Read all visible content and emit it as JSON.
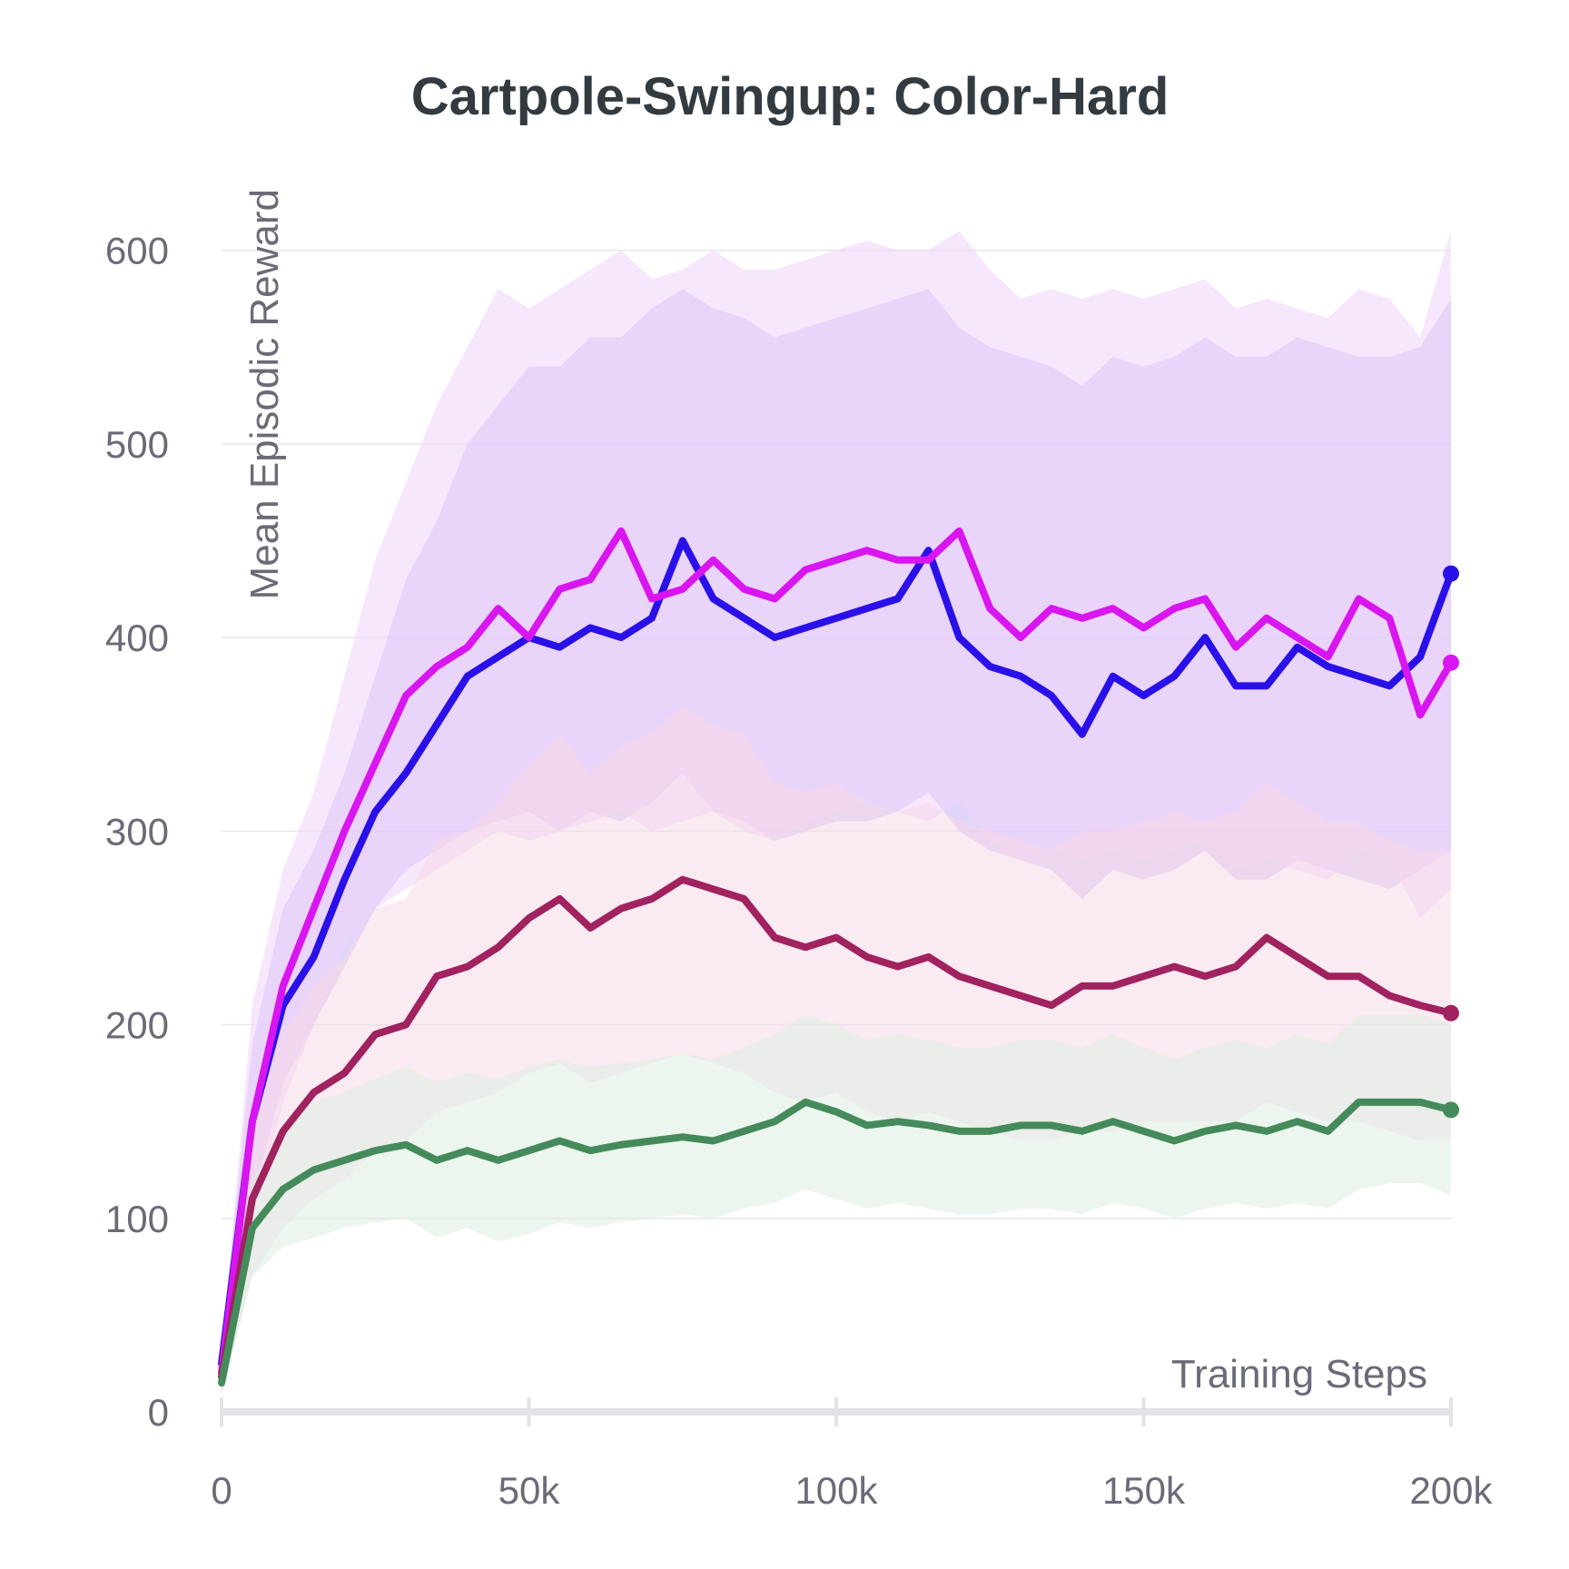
{
  "chart_data": {
    "type": "line",
    "title": "Cartpole-Swingup: Color-Hard",
    "xlabel": "Training Steps",
    "ylabel": "Mean Episodic Reward",
    "xlim": [
      0,
      200000
    ],
    "ylim": [
      0,
      620
    ],
    "x_ticks": [
      {
        "value": 0,
        "label": "0"
      },
      {
        "value": 50000,
        "label": "50k"
      },
      {
        "value": 100000,
        "label": "100k"
      },
      {
        "value": 150000,
        "label": "150k"
      },
      {
        "value": 200000,
        "label": "200k"
      }
    ],
    "y_ticks": [
      {
        "value": 0,
        "label": "0"
      },
      {
        "value": 100,
        "label": "100"
      },
      {
        "value": 200,
        "label": "200"
      },
      {
        "value": 300,
        "label": "300"
      },
      {
        "value": 400,
        "label": "400"
      },
      {
        "value": 500,
        "label": "500"
      },
      {
        "value": 600,
        "label": "600"
      }
    ],
    "grid": true,
    "legend": "none",
    "x": [
      0,
      5000,
      10000,
      15000,
      20000,
      25000,
      30000,
      35000,
      40000,
      45000,
      50000,
      55000,
      60000,
      65000,
      70000,
      75000,
      80000,
      85000,
      90000,
      95000,
      100000,
      105000,
      110000,
      115000,
      120000,
      125000,
      130000,
      135000,
      140000,
      145000,
      150000,
      155000,
      160000,
      165000,
      170000,
      175000,
      180000,
      185000,
      190000,
      195000,
      200000
    ],
    "series": [
      {
        "color": "#2a10e8",
        "band_color": "#c9b3f5",
        "values": [
          25,
          150,
          210,
          235,
          275,
          310,
          330,
          355,
          380,
          390,
          400,
          395,
          405,
          400,
          410,
          450,
          420,
          410,
          400,
          405,
          410,
          415,
          420,
          445,
          400,
          385,
          380,
          370,
          350,
          380,
          370,
          380,
          400,
          375,
          375,
          395,
          385,
          380,
          375,
          390,
          433
        ],
        "band_low": [
          15,
          110,
          170,
          200,
          230,
          260,
          280,
          290,
          300,
          305,
          310,
          300,
          310,
          305,
          315,
          330,
          310,
          305,
          295,
          300,
          305,
          305,
          310,
          320,
          300,
          290,
          285,
          280,
          265,
          280,
          275,
          280,
          290,
          275,
          275,
          285,
          280,
          275,
          270,
          280,
          290
        ],
        "band_high": [
          35,
          190,
          260,
          290,
          330,
          380,
          430,
          460,
          500,
          520,
          540,
          540,
          555,
          555,
          570,
          580,
          570,
          565,
          555,
          560,
          565,
          570,
          575,
          580,
          560,
          550,
          545,
          540,
          530,
          545,
          540,
          545,
          555,
          545,
          545,
          555,
          550,
          545,
          545,
          550,
          575
        ]
      },
      {
        "color": "#d915f0",
        "band_color": "#f1d3fa",
        "values": [
          20,
          150,
          220,
          260,
          300,
          335,
          370,
          385,
          395,
          415,
          400,
          425,
          430,
          455,
          420,
          425,
          440,
          425,
          420,
          435,
          440,
          445,
          440,
          440,
          455,
          415,
          400,
          415,
          410,
          415,
          405,
          415,
          420,
          395,
          410,
          400,
          390,
          420,
          410,
          360,
          387
        ],
        "band_low": [
          10,
          100,
          160,
          200,
          240,
          260,
          270,
          280,
          290,
          300,
          295,
          300,
          305,
          310,
          300,
          305,
          310,
          300,
          295,
          305,
          310,
          315,
          310,
          305,
          315,
          295,
          285,
          290,
          285,
          290,
          285,
          290,
          295,
          280,
          285,
          280,
          275,
          290,
          285,
          255,
          270
        ],
        "band_high": [
          30,
          210,
          280,
          320,
          380,
          440,
          480,
          520,
          550,
          580,
          570,
          580,
          590,
          600,
          585,
          590,
          600,
          590,
          590,
          595,
          600,
          605,
          600,
          600,
          610,
          590,
          575,
          580,
          575,
          580,
          575,
          580,
          585,
          570,
          575,
          570,
          565,
          580,
          575,
          555,
          610
        ]
      },
      {
        "color": "#a0225f",
        "band_color": "#f5d8e6",
        "values": [
          18,
          110,
          145,
          165,
          175,
          195,
          200,
          225,
          230,
          240,
          255,
          265,
          250,
          260,
          265,
          275,
          270,
          265,
          245,
          240,
          245,
          235,
          230,
          235,
          225,
          220,
          215,
          210,
          220,
          220,
          225,
          230,
          225,
          230,
          245,
          235,
          225,
          225,
          215,
          210,
          206
        ],
        "band_low": [
          8,
          70,
          95,
          110,
          120,
          135,
          140,
          155,
          160,
          165,
          175,
          180,
          170,
          175,
          180,
          185,
          180,
          175,
          165,
          160,
          165,
          155,
          150,
          155,
          150,
          145,
          140,
          140,
          145,
          145,
          150,
          150,
          150,
          150,
          160,
          155,
          150,
          150,
          145,
          140,
          140
        ],
        "band_high": [
          28,
          150,
          195,
          220,
          235,
          260,
          265,
          295,
          300,
          315,
          335,
          350,
          330,
          345,
          350,
          365,
          355,
          350,
          325,
          320,
          325,
          315,
          310,
          315,
          305,
          300,
          295,
          290,
          300,
          300,
          305,
          310,
          305,
          310,
          325,
          315,
          305,
          305,
          295,
          290,
          290
        ]
      },
      {
        "color": "#458a5a",
        "band_color": "#dceee2",
        "values": [
          15,
          95,
          115,
          125,
          130,
          135,
          138,
          130,
          135,
          130,
          135,
          140,
          135,
          138,
          140,
          142,
          140,
          145,
          150,
          160,
          155,
          148,
          150,
          148,
          145,
          145,
          148,
          148,
          145,
          150,
          145,
          140,
          145,
          148,
          145,
          150,
          145,
          160,
          160,
          160,
          156
        ],
        "band_low": [
          8,
          70,
          85,
          90,
          95,
          98,
          100,
          90,
          95,
          88,
          92,
          98,
          95,
          98,
          100,
          102,
          100,
          105,
          108,
          115,
          110,
          105,
          108,
          105,
          102,
          102,
          105,
          105,
          102,
          108,
          105,
          100,
          105,
          108,
          105,
          108,
          105,
          115,
          118,
          118,
          112
        ],
        "band_high": [
          22,
          120,
          145,
          160,
          165,
          172,
          178,
          170,
          175,
          172,
          178,
          182,
          178,
          180,
          182,
          185,
          182,
          188,
          195,
          205,
          200,
          192,
          195,
          192,
          188,
          188,
          192,
          192,
          188,
          195,
          188,
          182,
          188,
          192,
          188,
          195,
          190,
          205,
          205,
          205,
          200
        ]
      }
    ]
  }
}
